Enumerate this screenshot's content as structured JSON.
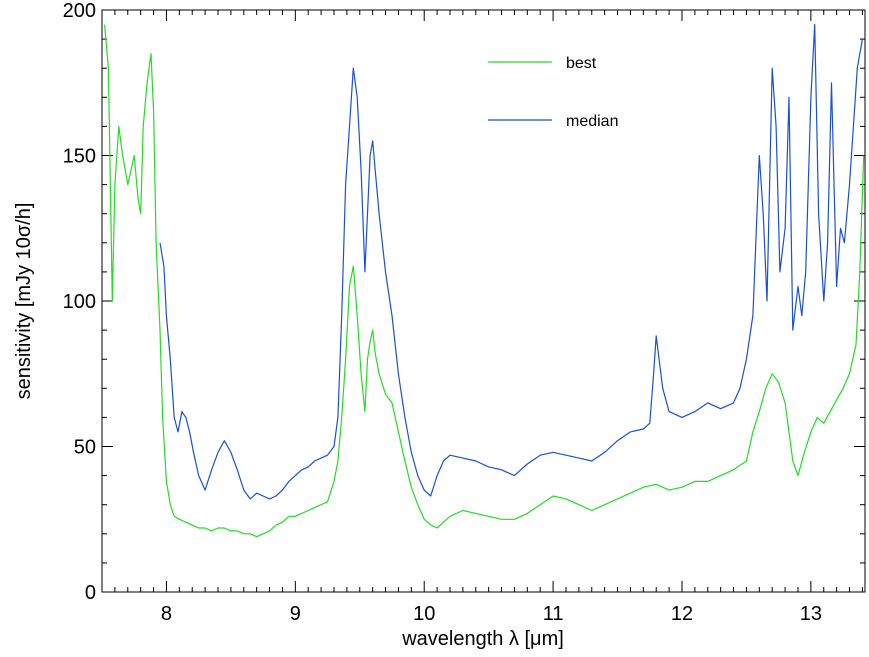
{
  "chart_data": {
    "type": "line",
    "xlabel": "wavelength λ [μm]",
    "ylabel": "sensitivity [mJy 10σ/h]",
    "xlim": [
      7.5,
      13.42
    ],
    "ylim": [
      0,
      200
    ],
    "xticks": [
      8,
      9,
      10,
      11,
      12,
      13
    ],
    "yticks": [
      0,
      50,
      100,
      150,
      200
    ],
    "grid": false,
    "legend_position": "top-right",
    "series": [
      {
        "name": "best",
        "color": "#22dd22",
        "x": [
          7.52,
          7.55,
          7.58,
          7.6,
          7.63,
          7.66,
          7.7,
          7.75,
          7.78,
          7.8,
          7.82,
          7.85,
          7.88,
          7.9,
          7.92,
          7.95,
          7.97,
          8.0,
          8.03,
          8.06,
          8.1,
          8.15,
          8.2,
          8.25,
          8.3,
          8.35,
          8.4,
          8.45,
          8.5,
          8.55,
          8.6,
          8.65,
          8.7,
          8.75,
          8.8,
          8.85,
          8.9,
          8.95,
          9.0,
          9.05,
          9.1,
          9.15,
          9.2,
          9.25,
          9.3,
          9.33,
          9.36,
          9.39,
          9.42,
          9.45,
          9.48,
          9.51,
          9.54,
          9.56,
          9.58,
          9.6,
          9.62,
          9.65,
          9.7,
          9.75,
          9.8,
          9.85,
          9.9,
          9.95,
          10.0,
          10.05,
          10.1,
          10.15,
          10.2,
          10.3,
          10.4,
          10.5,
          10.6,
          10.7,
          10.8,
          10.9,
          11.0,
          11.1,
          11.2,
          11.3,
          11.4,
          11.5,
          11.6,
          11.7,
          11.8,
          11.9,
          12.0,
          12.1,
          12.2,
          12.3,
          12.4,
          12.5,
          12.55,
          12.6,
          12.65,
          12.7,
          12.75,
          12.8,
          12.83,
          12.86,
          12.9,
          12.95,
          13.0,
          13.05,
          13.1,
          13.15,
          13.2,
          13.25,
          13.3,
          13.35,
          13.38,
          13.41
        ],
        "y": [
          195,
          180,
          100,
          140,
          160,
          150,
          140,
          150,
          135,
          130,
          160,
          175,
          185,
          165,
          120,
          90,
          60,
          38,
          30,
          26,
          25,
          24,
          23,
          22,
          22,
          21,
          22,
          22,
          21,
          21,
          20,
          20,
          19,
          20,
          21,
          23,
          24,
          26,
          26,
          27,
          28,
          29,
          30,
          31,
          38,
          45,
          60,
          80,
          105,
          112,
          95,
          75,
          62,
          80,
          86,
          90,
          82,
          75,
          68,
          65,
          55,
          45,
          36,
          30,
          25,
          23,
          22,
          24,
          26,
          28,
          27,
          26,
          25,
          25,
          27,
          30,
          33,
          32,
          30,
          28,
          30,
          32,
          34,
          36,
          37,
          35,
          36,
          38,
          38,
          40,
          42,
          45,
          55,
          62,
          70,
          75,
          72,
          65,
          55,
          45,
          40,
          48,
          55,
          60,
          58,
          62,
          66,
          70,
          75,
          85,
          110,
          150
        ]
      },
      {
        "name": "median",
        "color": "#1a4fd6",
        "x": [
          7.95,
          7.98,
          8.0,
          8.03,
          8.06,
          8.09,
          8.12,
          8.15,
          8.18,
          8.21,
          8.25,
          8.3,
          8.35,
          8.4,
          8.45,
          8.5,
          8.55,
          8.6,
          8.65,
          8.7,
          8.75,
          8.8,
          8.85,
          8.9,
          8.95,
          9.0,
          9.05,
          9.1,
          9.15,
          9.2,
          9.25,
          9.3,
          9.33,
          9.36,
          9.39,
          9.42,
          9.45,
          9.48,
          9.51,
          9.54,
          9.56,
          9.58,
          9.6,
          9.62,
          9.65,
          9.7,
          9.75,
          9.8,
          9.85,
          9.9,
          9.95,
          10.0,
          10.05,
          10.1,
          10.15,
          10.2,
          10.3,
          10.4,
          10.5,
          10.6,
          10.7,
          10.8,
          10.9,
          11.0,
          11.1,
          11.2,
          11.3,
          11.4,
          11.5,
          11.6,
          11.7,
          11.75,
          11.78,
          11.8,
          11.85,
          11.9,
          12.0,
          12.1,
          12.2,
          12.3,
          12.4,
          12.45,
          12.5,
          12.55,
          12.6,
          12.63,
          12.66,
          12.7,
          12.73,
          12.76,
          12.8,
          12.83,
          12.86,
          12.9,
          12.93,
          12.96,
          13.0,
          13.03,
          13.06,
          13.1,
          13.13,
          13.16,
          13.2,
          13.23,
          13.26,
          13.3,
          13.33,
          13.36,
          13.4
        ],
        "y": [
          120,
          112,
          95,
          80,
          60,
          55,
          62,
          60,
          55,
          48,
          40,
          35,
          42,
          48,
          52,
          48,
          42,
          35,
          32,
          34,
          33,
          32,
          33,
          35,
          38,
          40,
          42,
          43,
          45,
          46,
          47,
          50,
          60,
          95,
          140,
          160,
          180,
          170,
          145,
          110,
          130,
          150,
          155,
          145,
          130,
          110,
          95,
          75,
          60,
          48,
          40,
          35,
          33,
          40,
          45,
          47,
          46,
          45,
          43,
          42,
          40,
          44,
          47,
          48,
          47,
          46,
          45,
          48,
          52,
          55,
          56,
          58,
          75,
          88,
          70,
          62,
          60,
          62,
          65,
          63,
          65,
          70,
          80,
          95,
          150,
          130,
          100,
          180,
          160,
          110,
          125,
          170,
          90,
          105,
          95,
          110,
          170,
          195,
          130,
          100,
          120,
          175,
          105,
          125,
          120,
          140,
          160,
          180,
          190
        ]
      }
    ]
  }
}
